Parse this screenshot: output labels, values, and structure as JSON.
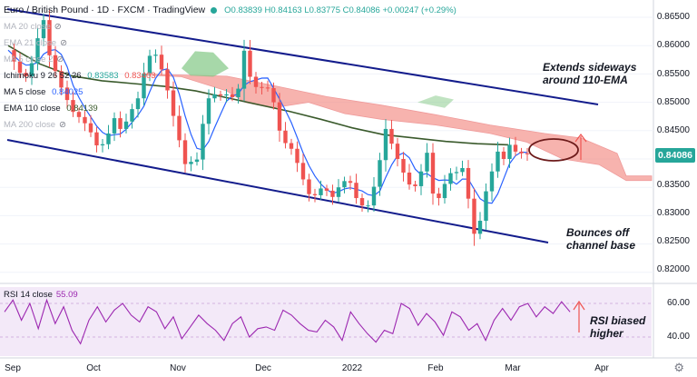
{
  "header": {
    "title": "Euro / British Pound · 1D · FXCM · TradingView",
    "open": "O0.83839",
    "high": "H0.84163",
    "low": "L0.83775",
    "close": "C0.84086",
    "change": "+0.00247 (+0.29%)"
  },
  "legend": {
    "ma20": "MA 20 close",
    "ema21": "EMA 21 close",
    "ma5close2": "MA 5 close 2",
    "ichimoku": "Ichimoku 9 26 52 26",
    "ichimoku_v1": "0.83583",
    "ichimoku_v2": "0.83403",
    "ma5": "MA 5 close",
    "ma5_value": "0.84025",
    "ema110": "EMA 110 close",
    "ema110_value": "0.84139",
    "ma200": "MA 200 close"
  },
  "annotations": {
    "top_line1": "Extends sideways",
    "top_line2": "around 110-EMA",
    "bottom_line1": "Bounces off",
    "bottom_line2": "channel base",
    "rsi_line1": "RSI biased",
    "rsi_line2": "higher"
  },
  "rsi": {
    "label": "RSI 14 close",
    "value": "55.09"
  },
  "price_axis": [
    "0.86500",
    "0.86000",
    "0.85500",
    "0.85000",
    "0.84500",
    "0.84000",
    "0.83500",
    "0.83000",
    "0.82500",
    "0.82000"
  ],
  "rsi_axis": [
    "60.00",
    "40.00"
  ],
  "time_axis": [
    "Sep",
    "Oct",
    "Nov",
    "Dec",
    "2022",
    "Feb",
    "Mar",
    "Apr"
  ],
  "last_price": "0.84086",
  "colors": {
    "up": "#26a69a",
    "down": "#ef5350",
    "ema110": "#3a5a2c",
    "ma5": "#2962ff",
    "channel": "#131c8c",
    "rsi": "#9c27b0",
    "cloud_bear": "#f28b82",
    "cloud_bull": "#81c784"
  },
  "chart_data": {
    "type": "candlestick",
    "symbol": "EURGBP",
    "timeframe": "1D",
    "x_ticks": [
      "Sep",
      "Oct",
      "Nov",
      "Dec",
      "2022",
      "Feb",
      "Mar",
      "Apr"
    ],
    "price_ticks": [
      0.865,
      0.86,
      0.855,
      0.85,
      0.845,
      0.84,
      0.835,
      0.83,
      0.825,
      0.82
    ],
    "ylim": [
      0.8175,
      0.868
    ],
    "close_path": [
      0.8592,
      0.8572,
      0.8552,
      0.8546,
      0.8569,
      0.8613,
      0.8645,
      0.8583,
      0.8555,
      0.8526,
      0.8504,
      0.8483,
      0.8474,
      0.8463,
      0.8447,
      0.8424,
      0.8426,
      0.8445,
      0.8472,
      0.8453,
      0.8466,
      0.8488,
      0.8507,
      0.8551,
      0.8582,
      0.8584,
      0.8558,
      0.8521,
      0.8476,
      0.8433,
      0.8391,
      0.8395,
      0.8399,
      0.8462,
      0.8507,
      0.8514,
      0.8512,
      0.8514,
      0.8509,
      0.8524,
      0.8591,
      0.8545,
      0.8527,
      0.8526,
      0.8525,
      0.85,
      0.845,
      0.8428,
      0.8418,
      0.8393,
      0.8364,
      0.8338,
      0.8336,
      0.8348,
      0.8344,
      0.8333,
      0.835,
      0.8361,
      0.8358,
      0.8331,
      0.8318,
      0.8318,
      0.8351,
      0.8398,
      0.8453,
      0.8427,
      0.84,
      0.8376,
      0.8355,
      0.8352,
      0.8378,
      0.8411,
      0.8339,
      0.8331,
      0.8356,
      0.8375,
      0.8377,
      0.8384,
      0.833,
      0.8268,
      0.8291,
      0.8343,
      0.8378,
      0.8413,
      0.84,
      0.8425,
      0.8413,
      0.841,
      0.8409
    ],
    "ema110_path": [
      0.86,
      0.8568,
      0.8547,
      0.8538,
      0.8533,
      0.8528,
      0.852,
      0.8508,
      0.8496,
      0.8484,
      0.847,
      0.8455,
      0.8443,
      0.8437,
      0.8431,
      0.8427,
      0.8425
    ],
    "ichimoku_values": [
      0.83583,
      0.83403
    ],
    "ma5_value": 0.84025,
    "ema110_value": 0.84139,
    "rsi_ticks": [
      60,
      40
    ],
    "rsi_last": 55.09,
    "rsi_path": [
      55,
      62,
      50,
      60,
      45,
      62,
      48,
      58,
      44,
      36,
      50,
      58,
      49,
      56,
      60,
      53,
      49,
      58,
      55,
      45,
      52,
      39,
      46,
      53,
      48,
      44,
      38,
      48,
      52,
      40,
      45,
      46,
      44,
      56,
      53,
      48,
      44,
      43,
      50,
      46,
      38,
      55,
      48,
      42,
      37,
      44,
      42,
      60,
      57,
      47,
      54,
      49,
      41,
      55,
      52,
      44,
      48,
      38,
      50,
      57,
      50,
      58,
      60,
      52,
      58,
      54,
      61,
      55
    ]
  }
}
